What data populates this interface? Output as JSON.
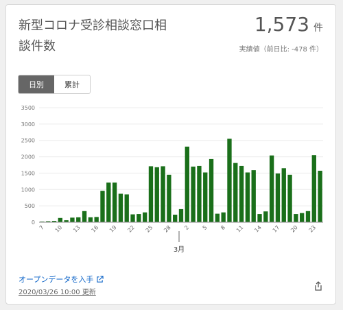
{
  "card": {
    "title": "新型コロナ受診相談窓口相談件数",
    "value": "1,573",
    "unit": "件",
    "subtext": "実績値（前日比: -478 件）",
    "toggles": [
      "日別",
      "累計"
    ],
    "active_toggle": "日別",
    "footer_link": "オープンデータを入手",
    "updated": "2020/03/26 10:00 更新",
    "icons": {
      "external": "external-link-icon",
      "share": "share-icon"
    }
  },
  "colors": {
    "bar": "#1a6f1a"
  },
  "chart_data": {
    "type": "bar",
    "month_label": "3月",
    "yticks": [
      0,
      500,
      1000,
      1500,
      2000,
      2500,
      3000,
      3500
    ],
    "ylim": [
      0,
      3500
    ],
    "xtick_labels": [
      "7",
      "10",
      "13",
      "16",
      "19",
      "22",
      "25",
      "28",
      "2",
      "5",
      "8",
      "11",
      "14",
      "17",
      "20",
      "23"
    ],
    "values": [
      20,
      30,
      40,
      130,
      60,
      140,
      150,
      340,
      150,
      160,
      960,
      1210,
      1210,
      870,
      850,
      240,
      250,
      300,
      1710,
      1680,
      1710,
      1450,
      230,
      400,
      2310,
      1700,
      1720,
      1520,
      1930,
      260,
      300,
      2550,
      1810,
      1720,
      1520,
      1590,
      250,
      330,
      2040,
      1490,
      1650,
      1450,
      250,
      280,
      340,
      2050,
      1573
    ]
  }
}
